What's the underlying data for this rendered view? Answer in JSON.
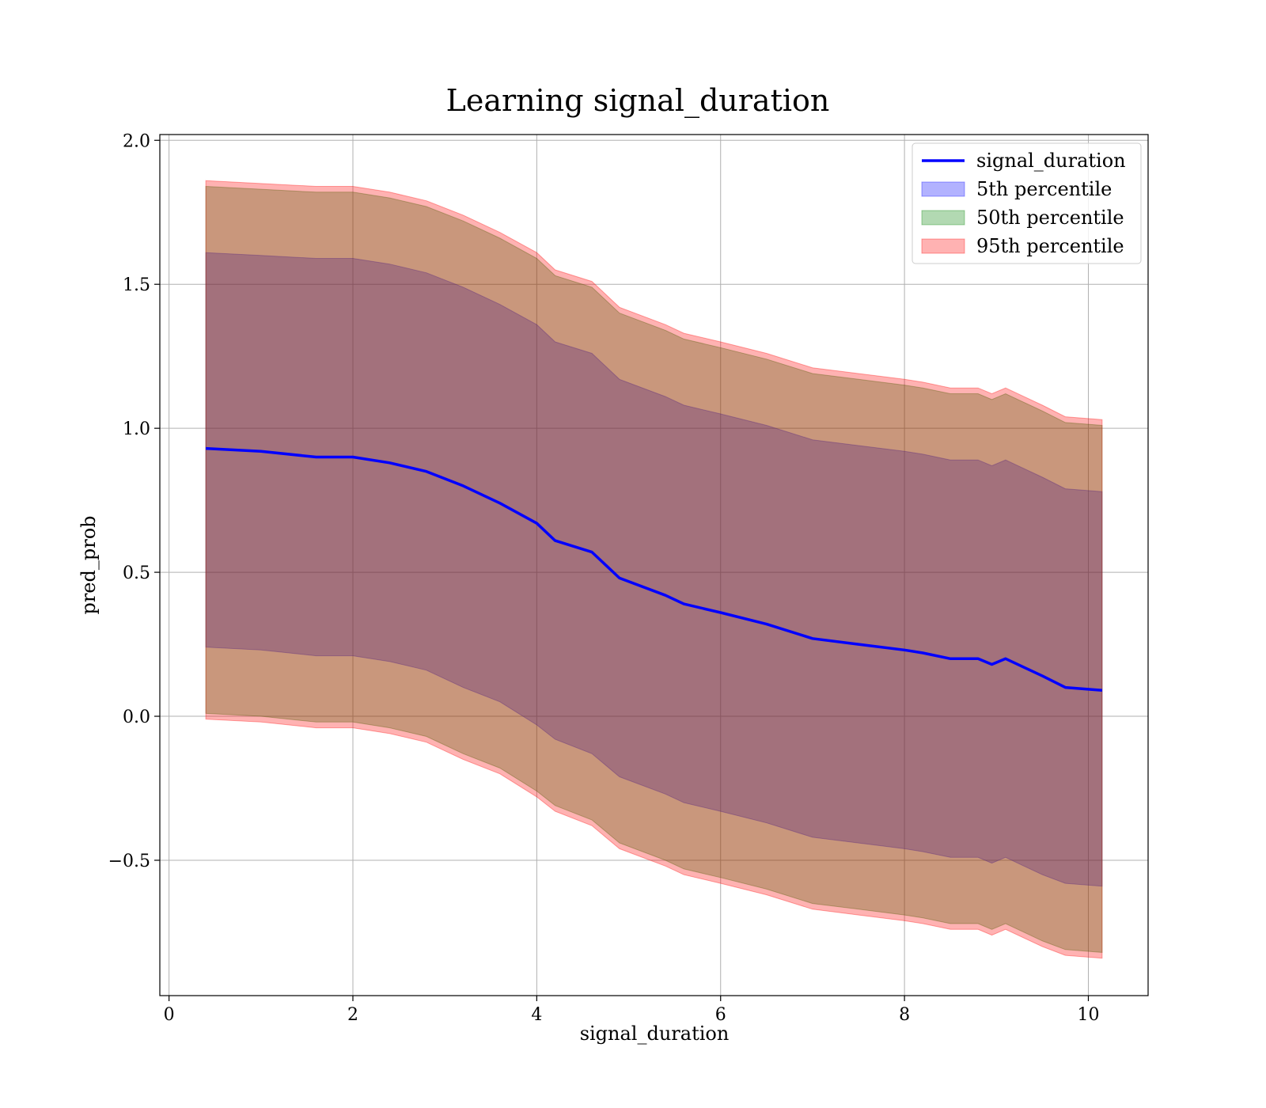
{
  "chart_data": {
    "type": "area",
    "title": "Learning signal_duration",
    "xlabel": "signal_duration",
    "ylabel": "pred_prob",
    "xlim": [
      -0.1,
      10.65
    ],
    "ylim": [
      -0.97,
      2.02
    ],
    "xticks": [
      0,
      2,
      4,
      6,
      8,
      10
    ],
    "xtick_labels": [
      "0",
      "2",
      "4",
      "6",
      "8",
      "10"
    ],
    "yticks": [
      -0.5,
      0.0,
      0.5,
      1.0,
      1.5,
      2.0
    ],
    "ytick_labels": [
      "−0.5",
      "0.0",
      "0.5",
      "1.0",
      "1.5",
      "2.0"
    ],
    "grid": true,
    "legend_position": "top-right",
    "x": [
      0.4,
      1.0,
      1.6,
      2.0,
      2.4,
      2.8,
      3.2,
      3.6,
      4.0,
      4.2,
      4.6,
      4.9,
      5.4,
      5.6,
      6.0,
      6.5,
      7.0,
      7.5,
      8.0,
      8.2,
      8.5,
      8.8,
      8.95,
      9.1,
      9.3,
      9.5,
      9.75,
      10.15
    ],
    "series": [
      {
        "name": "signal_duration",
        "kind": "line",
        "color": "#0000ff",
        "values": [
          0.93,
          0.92,
          0.9,
          0.9,
          0.88,
          0.85,
          0.8,
          0.74,
          0.67,
          0.61,
          0.57,
          0.48,
          0.42,
          0.39,
          0.36,
          0.32,
          0.27,
          0.25,
          0.23,
          0.22,
          0.2,
          0.2,
          0.18,
          0.2,
          0.17,
          0.14,
          0.1,
          0.09
        ]
      },
      {
        "name": "5th percentile",
        "kind": "band",
        "color": "#0000ff",
        "lower": [
          0.24,
          0.23,
          0.21,
          0.21,
          0.19,
          0.16,
          0.1,
          0.05,
          -0.03,
          -0.08,
          -0.13,
          -0.21,
          -0.27,
          -0.3,
          -0.33,
          -0.37,
          -0.42,
          -0.44,
          -0.46,
          -0.47,
          -0.49,
          -0.49,
          -0.51,
          -0.49,
          -0.52,
          -0.55,
          -0.58,
          -0.59
        ],
        "upper": [
          1.61,
          1.6,
          1.59,
          1.59,
          1.57,
          1.54,
          1.49,
          1.43,
          1.36,
          1.3,
          1.26,
          1.17,
          1.11,
          1.08,
          1.05,
          1.01,
          0.96,
          0.94,
          0.92,
          0.91,
          0.89,
          0.89,
          0.87,
          0.89,
          0.86,
          0.83,
          0.79,
          0.78
        ]
      },
      {
        "name": "50th percentile",
        "kind": "band",
        "color": "#008000",
        "lower": [
          0.01,
          0.0,
          -0.02,
          -0.02,
          -0.04,
          -0.07,
          -0.13,
          -0.18,
          -0.26,
          -0.31,
          -0.36,
          -0.44,
          -0.5,
          -0.53,
          -0.56,
          -0.6,
          -0.65,
          -0.67,
          -0.69,
          -0.7,
          -0.72,
          -0.72,
          -0.74,
          -0.72,
          -0.75,
          -0.78,
          -0.81,
          -0.82
        ],
        "upper": [
          1.84,
          1.83,
          1.82,
          1.82,
          1.8,
          1.77,
          1.72,
          1.66,
          1.59,
          1.53,
          1.49,
          1.4,
          1.34,
          1.31,
          1.28,
          1.24,
          1.19,
          1.17,
          1.15,
          1.14,
          1.12,
          1.12,
          1.1,
          1.12,
          1.09,
          1.06,
          1.02,
          1.01
        ]
      },
      {
        "name": "95th percentile",
        "kind": "band",
        "color": "#ff0000",
        "lower": [
          -0.01,
          -0.02,
          -0.04,
          -0.04,
          -0.06,
          -0.09,
          -0.15,
          -0.2,
          -0.28,
          -0.33,
          -0.38,
          -0.46,
          -0.52,
          -0.55,
          -0.58,
          -0.62,
          -0.67,
          -0.69,
          -0.71,
          -0.72,
          -0.74,
          -0.74,
          -0.76,
          -0.74,
          -0.77,
          -0.8,
          -0.83,
          -0.84
        ],
        "upper": [
          1.86,
          1.85,
          1.84,
          1.84,
          1.82,
          1.79,
          1.74,
          1.68,
          1.61,
          1.55,
          1.51,
          1.42,
          1.36,
          1.33,
          1.3,
          1.26,
          1.21,
          1.19,
          1.17,
          1.16,
          1.14,
          1.14,
          1.12,
          1.14,
          1.11,
          1.08,
          1.04,
          1.03
        ]
      }
    ]
  }
}
